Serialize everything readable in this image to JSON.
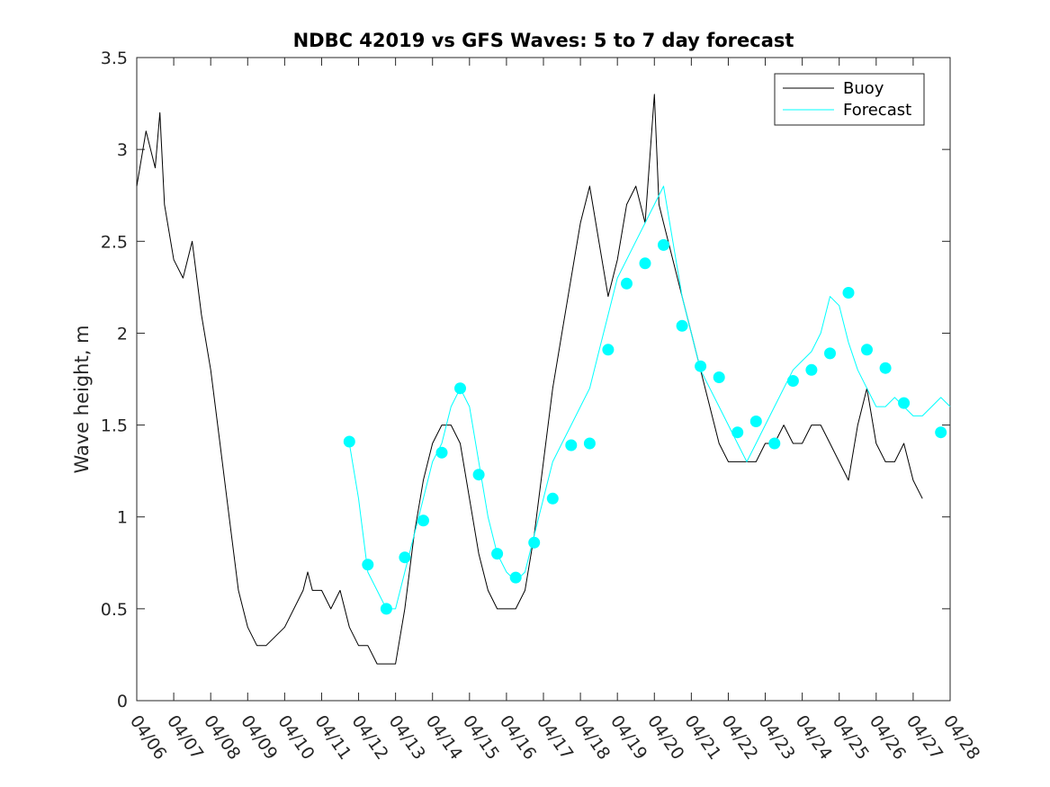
{
  "chart_data": {
    "type": "line",
    "title": "NDBC 42019 vs GFS Waves: 5 to 7 day forecast",
    "xlabel": "",
    "ylabel": "Wave height, m",
    "xlim": [
      "04/06",
      "04/28"
    ],
    "ylim": [
      0,
      3.5
    ],
    "x_ticks": [
      "04/06",
      "04/07",
      "04/08",
      "04/09",
      "04/10",
      "04/11",
      "04/12",
      "04/13",
      "04/14",
      "04/15",
      "04/16",
      "04/17",
      "04/18",
      "04/19",
      "04/20",
      "04/21",
      "04/22",
      "04/23",
      "04/24",
      "04/25",
      "04/26",
      "04/27",
      "04/28"
    ],
    "y_ticks": [
      "0",
      "0.5",
      "1",
      "1.5",
      "2",
      "2.5",
      "3",
      "3.5"
    ],
    "grid": false,
    "legend_position": "top-right",
    "colors": {
      "buoy": "#000000",
      "forecast": "#00ffff",
      "axis": "#262626"
    },
    "series": [
      {
        "name": "Buoy",
        "x": [
          "04/06 00:00",
          "04/06 06:00",
          "04/06 12:00",
          "04/06 15:00",
          "04/06 18:00",
          "04/07 00:00",
          "04/07 06:00",
          "04/07 12:00",
          "04/07 18:00",
          "04/08 00:00",
          "04/08 06:00",
          "04/08 12:00",
          "04/08 18:00",
          "04/09 00:00",
          "04/09 06:00",
          "04/09 12:00",
          "04/10 00:00",
          "04/10 12:00",
          "04/10 15:00",
          "04/10 18:00",
          "04/11 00:00",
          "04/11 06:00",
          "04/11 12:00",
          "04/11 18:00",
          "04/12 00:00",
          "04/12 06:00",
          "04/12 12:00",
          "04/12 18:00",
          "04/13 00:00",
          "04/13 06:00",
          "04/13 12:00",
          "04/13 18:00",
          "04/14 00:00",
          "04/14 06:00",
          "04/14 12:00",
          "04/14 18:00",
          "04/15 00:00",
          "04/15 06:00",
          "04/15 12:00",
          "04/15 18:00",
          "04/16 00:00",
          "04/16 06:00",
          "04/16 12:00",
          "04/16 18:00",
          "04/17 00:00",
          "04/17 06:00",
          "04/17 12:00",
          "04/17 18:00",
          "04/18 00:00",
          "04/18 06:00",
          "04/18 12:00",
          "04/18 18:00",
          "04/19 00:00",
          "04/19 06:00",
          "04/19 12:00",
          "04/19 18:00",
          "04/20 00:00",
          "04/20 03:00",
          "04/20 06:00",
          "04/20 12:00",
          "04/20 18:00",
          "04/21 00:00",
          "04/21 06:00",
          "04/21 12:00",
          "04/21 18:00",
          "04/22 00:00",
          "04/22 06:00",
          "04/22 12:00",
          "04/22 18:00",
          "04/23 00:00",
          "04/23 06:00",
          "04/23 12:00",
          "04/23 18:00",
          "04/24 00:00",
          "04/24 06:00",
          "04/24 12:00",
          "04/24 18:00",
          "04/25 00:00",
          "04/25 06:00",
          "04/25 12:00",
          "04/25 18:00",
          "04/26 00:00",
          "04/26 06:00",
          "04/26 12:00",
          "04/26 18:00",
          "04/27 00:00",
          "04/27 06:00"
        ],
        "y": [
          2.8,
          3.1,
          2.9,
          3.2,
          2.7,
          2.4,
          2.3,
          2.5,
          2.1,
          1.8,
          1.4,
          1.0,
          0.6,
          0.4,
          0.3,
          0.3,
          0.4,
          0.6,
          0.7,
          0.6,
          0.6,
          0.5,
          0.6,
          0.4,
          0.3,
          0.3,
          0.2,
          0.2,
          0.2,
          0.5,
          0.9,
          1.2,
          1.4,
          1.5,
          1.5,
          1.4,
          1.1,
          0.8,
          0.6,
          0.5,
          0.5,
          0.5,
          0.6,
          0.9,
          1.3,
          1.7,
          2.0,
          2.3,
          2.6,
          2.8,
          2.5,
          2.2,
          2.4,
          2.7,
          2.8,
          2.6,
          3.3,
          2.7,
          2.6,
          2.4,
          2.2,
          2.0,
          1.8,
          1.6,
          1.4,
          1.3,
          1.3,
          1.3,
          1.3,
          1.4,
          1.4,
          1.5,
          1.4,
          1.4,
          1.5,
          1.5,
          1.4,
          1.3,
          1.2,
          1.5,
          1.7,
          1.4,
          1.3,
          1.3,
          1.4,
          1.2,
          1.1
        ]
      },
      {
        "name": "Forecast",
        "x": [
          "04/11 18:00",
          "04/12 00:00",
          "04/12 06:00",
          "04/12 12:00",
          "04/12 18:00",
          "04/13 00:00",
          "04/13 06:00",
          "04/13 12:00",
          "04/13 18:00",
          "04/14 00:00",
          "04/14 06:00",
          "04/14 12:00",
          "04/14 18:00",
          "04/15 00:00",
          "04/15 06:00",
          "04/15 12:00",
          "04/15 18:00",
          "04/16 00:00",
          "04/16 06:00",
          "04/16 12:00",
          "04/16 18:00",
          "04/17 00:00",
          "04/17 06:00",
          "04/17 12:00",
          "04/17 18:00",
          "04/18 00:00",
          "04/18 06:00",
          "04/18 12:00",
          "04/18 18:00",
          "04/19 00:00",
          "04/19 06:00",
          "04/19 12:00",
          "04/19 18:00",
          "04/20 00:00",
          "04/20 06:00",
          "04/20 12:00",
          "04/20 18:00",
          "04/21 00:00",
          "04/21 06:00",
          "04/21 12:00",
          "04/21 18:00",
          "04/22 00:00",
          "04/22 06:00",
          "04/22 12:00",
          "04/22 18:00",
          "04/23 00:00",
          "04/23 06:00",
          "04/23 12:00",
          "04/23 18:00",
          "04/24 00:00",
          "04/24 06:00",
          "04/24 12:00",
          "04/24 18:00",
          "04/25 00:00",
          "04/25 06:00",
          "04/25 12:00",
          "04/25 18:00",
          "04/26 00:00",
          "04/26 06:00",
          "04/26 12:00",
          "04/26 18:00",
          "04/27 00:00",
          "04/27 06:00",
          "04/27 12:00",
          "04/27 18:00",
          "04/28 00:00"
        ],
        "y": [
          1.4,
          1.1,
          0.7,
          0.6,
          0.5,
          0.5,
          0.7,
          0.9,
          1.1,
          1.3,
          1.4,
          1.6,
          1.7,
          1.6,
          1.3,
          1.0,
          0.8,
          0.7,
          0.65,
          0.7,
          0.9,
          1.1,
          1.3,
          1.4,
          1.5,
          1.6,
          1.7,
          1.9,
          2.1,
          2.3,
          2.4,
          2.5,
          2.6,
          2.7,
          2.8,
          2.5,
          2.2,
          2.0,
          1.8,
          1.7,
          1.6,
          1.5,
          1.4,
          1.3,
          1.4,
          1.5,
          1.6,
          1.7,
          1.8,
          1.85,
          1.9,
          2.0,
          2.2,
          2.15,
          1.95,
          1.8,
          1.7,
          1.6,
          1.6,
          1.65,
          1.6,
          1.55,
          1.55,
          1.6,
          1.65,
          1.6
        ]
      }
    ],
    "forecast_markers": {
      "x": [
        "04/11 18:00",
        "04/12 06:00",
        "04/12 18:00",
        "04/13 06:00",
        "04/13 18:00",
        "04/14 06:00",
        "04/14 18:00",
        "04/15 06:00",
        "04/15 18:00",
        "04/16 06:00",
        "04/16 18:00",
        "04/17 06:00",
        "04/17 18:00",
        "04/18 06:00",
        "04/18 18:00",
        "04/19 06:00",
        "04/19 18:00",
        "04/20 06:00",
        "04/20 18:00",
        "04/21 06:00",
        "04/21 18:00",
        "04/22 06:00",
        "04/22 18:00",
        "04/23 06:00",
        "04/23 18:00",
        "04/24 06:00",
        "04/24 18:00",
        "04/25 06:00",
        "04/25 18:00",
        "04/26 06:00",
        "04/26 18:00",
        "04/27 18:00"
      ],
      "y": [
        1.41,
        0.74,
        0.5,
        0.78,
        0.98,
        1.35,
        1.7,
        1.23,
        0.8,
        0.67,
        0.86,
        1.1,
        1.39,
        1.4,
        1.91,
        2.27,
        2.38,
        2.48,
        2.04,
        1.82,
        1.76,
        1.46,
        1.52,
        1.4,
        1.74,
        1.8,
        1.89,
        2.22,
        1.91,
        1.81,
        1.62,
        1.46
      ]
    }
  }
}
